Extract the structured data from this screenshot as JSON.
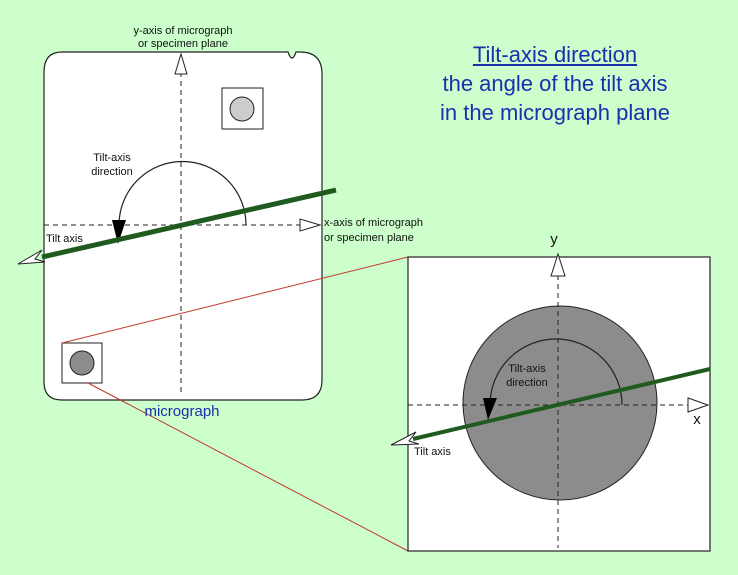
{
  "title": {
    "heading": "Tilt-axis direction",
    "line2": "the angle of the tilt axis",
    "line3": "in the micrograph plane"
  },
  "micrograph": {
    "caption": "micrograph",
    "y_axis_label_1": "y-axis of micrograph",
    "y_axis_label_2": "or specimen plane",
    "x_axis_label_1": "x-axis of micrograph",
    "x_axis_label_2": "or specimen plane",
    "tilt_direction_label_1": "Tilt-axis",
    "tilt_direction_label_2": "direction",
    "tilt_axis_label": "Tilt axis"
  },
  "zoom": {
    "y_label": "y",
    "x_label": "x",
    "tilt_direction_label_1": "Tilt-axis",
    "tilt_direction_label_2": "direction",
    "tilt_axis_label": "Tilt axis"
  },
  "colors": {
    "background": "#ccffcc",
    "title": "#1a2fb0",
    "tilt_axis": "#1f5a1f",
    "connector": "#c0392b",
    "specimen_circle": "#8c8c8c"
  }
}
